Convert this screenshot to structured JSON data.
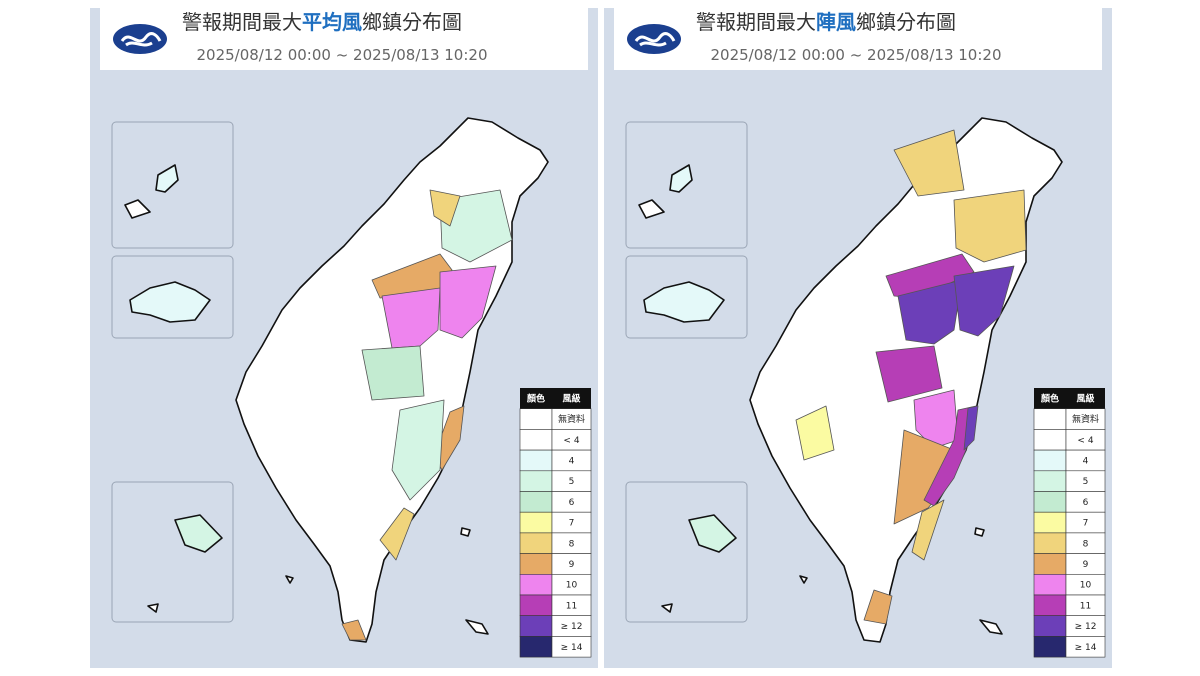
{
  "panels": [
    {
      "title_prefix": "警報期間最大",
      "title_highlight": "平均風",
      "title_suffix": "鄉鎮分布圖",
      "date_range": "2025/08/12 00:00 ~ 2025/08/13 10:20"
    },
    {
      "title_prefix": "警報期間最大",
      "title_highlight": "陣風",
      "title_suffix": "鄉鎮分布圖",
      "date_range": "2025/08/12 00:00 ~ 2025/08/13 10:20"
    }
  ],
  "legend": {
    "headers": [
      "顏色",
      "風級"
    ],
    "rows": [
      {
        "label": "無資料",
        "color": "#ffffff"
      },
      {
        "label": "< 4",
        "color": "#ffffff"
      },
      {
        "label": "4",
        "color": "#e4f9f9"
      },
      {
        "label": "5",
        "color": "#d4f5e4"
      },
      {
        "label": "6",
        "color": "#c3ebd1"
      },
      {
        "label": "7",
        "color": "#fbfba2"
      },
      {
        "label": "8",
        "color": "#f0d47c"
      },
      {
        "label": "9",
        "color": "#e6aa66"
      },
      {
        "label": "10",
        "color": "#ee84ee"
      },
      {
        "label": "11",
        "color": "#b63eb6"
      },
      {
        "label": "≥ 12",
        "color": "#6c3fb8"
      },
      {
        "label": "≥ 14",
        "color": "#27286e"
      }
    ]
  }
}
